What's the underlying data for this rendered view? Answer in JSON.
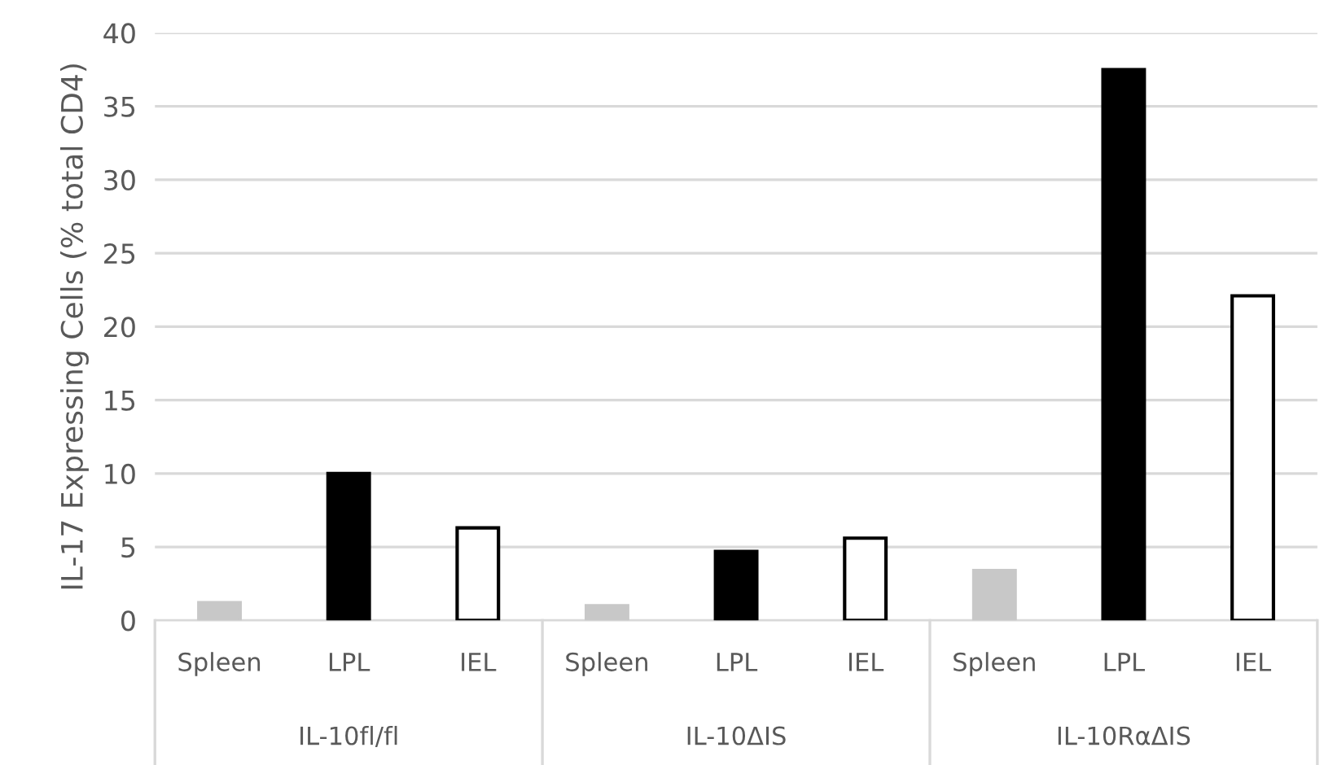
{
  "chart_data": {
    "type": "bar",
    "ylabel": "IL-17 Expressing Cells (% total CD4)",
    "categories": [
      "Spleen",
      "LPL",
      "IEL",
      "Spleen",
      "LPL",
      "IEL",
      "Spleen",
      "LPL",
      "IEL"
    ],
    "values": [
      1.2,
      10,
      6.3,
      1.0,
      4.7,
      5.6,
      3.4,
      37.5,
      22.1
    ],
    "colors": [
      "#c8c8c8",
      "#000000",
      "#ffffff",
      "#c8c8c8",
      "#000000",
      "#ffffff",
      "#c8c8c8",
      "#000000",
      "#ffffff"
    ],
    "ylim": [
      0,
      40
    ],
    "yticks": [
      0,
      5,
      10,
      15,
      20,
      25,
      30,
      35,
      40
    ],
    "grid": "y",
    "annotations": [
      "IL-10fl/fl",
      "IL-10ΔIS",
      "IL-10RαΔIS"
    ]
  }
}
